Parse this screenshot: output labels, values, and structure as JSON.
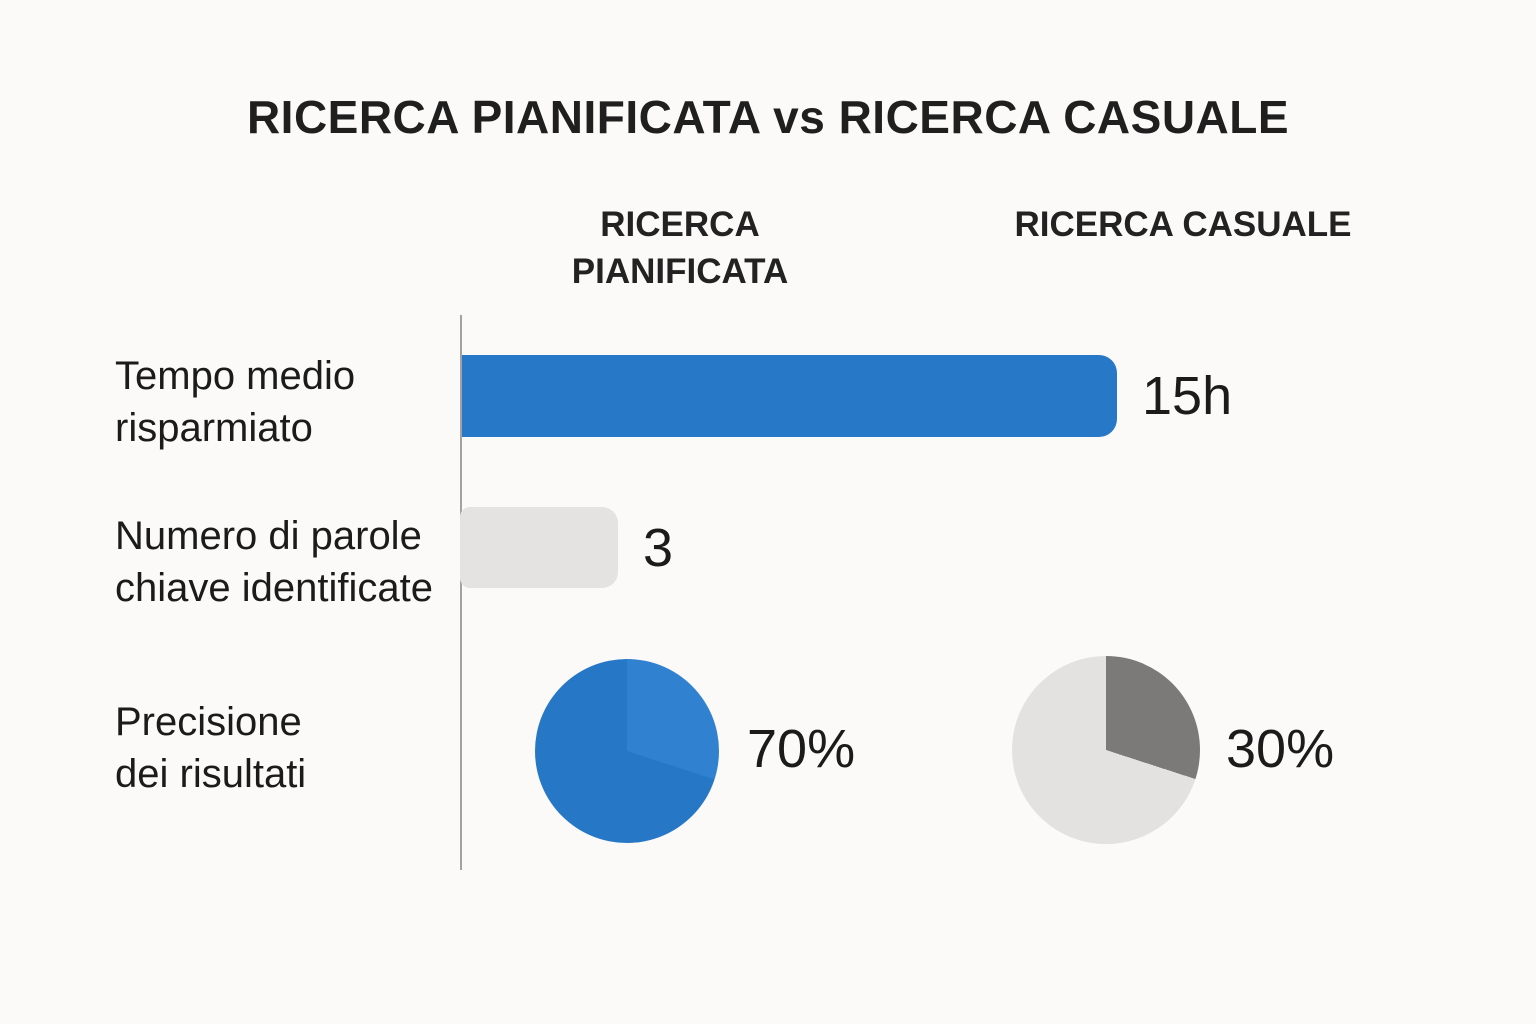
{
  "title": "RICERCA PIANIFICATA vs RICERCA CASUALE",
  "columns": {
    "planned": "RICERCA\nPIANIFICATA",
    "casual": "RICERCA CASUALE"
  },
  "rows": {
    "time": {
      "label": "Tempo medio\nrisparmiato",
      "value_label": "15h"
    },
    "keywords": {
      "label": "Numero di parole\nchiave identificate",
      "value_label": "3"
    },
    "precision": {
      "label": "Precisione\ndei risultati",
      "planned_value_label": "70%",
      "casual_value_label": "30%"
    }
  },
  "colors": {
    "background": "#FBFAF8",
    "axis": "#A3A2A0",
    "bar_blue": "#2878C8",
    "bar_gray": "#E4E3E1",
    "pie_blue": "#2777C7",
    "pie_blue_light": "#3181D1",
    "pie_gray_light": "#E3E2E0",
    "pie_gray_dark": "#7B7A78",
    "text": "#1B1B1B"
  },
  "chart_data": {
    "type": "table",
    "title": "RICERCA PIANIFICATA vs RICERCA CASUALE",
    "columns": [
      "RICERCA PIANIFICATA",
      "RICERCA CASUALE"
    ],
    "rows": [
      {
        "metric": "Tempo medio risparmiato",
        "display": "bar",
        "bar_column": "RICERCA PIANIFICATA",
        "value": 15,
        "unit": "h",
        "value_label": "15h",
        "bar_color": "#2878C8"
      },
      {
        "metric": "Numero di parole chiave identificate",
        "display": "bar",
        "bar_column": "RICERCA PIANIFICATA",
        "value": 3,
        "value_label": "3",
        "bar_color": "#E4E3E1"
      },
      {
        "metric": "Precisione dei risultati",
        "display": "pie",
        "planned_pct": 70,
        "casual_pct": 30,
        "planned_label": "70%",
        "casual_label": "30%",
        "planned_pie_colors": [
          "#2777C7",
          "#3181D1"
        ],
        "casual_pie_colors": [
          "#E3E2E0",
          "#7B7A78"
        ]
      }
    ],
    "legend_position": "none",
    "grid": false
  }
}
